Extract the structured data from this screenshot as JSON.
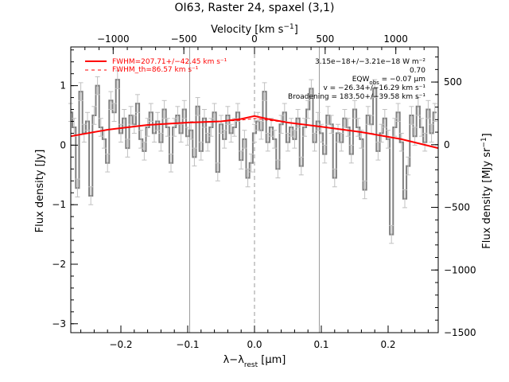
{
  "chart_data": {
    "type": "line",
    "title": "OI63, Raster 24, spaxel (3,1)",
    "xlabel": "λ−λrest [μm]",
    "ylabel": "Flux density [Jy]",
    "top_xlabel": "Velocity [km s⁻¹]",
    "right_ylabel": "Flux density [MJy sr⁻¹]",
    "xlim": [
      -0.275,
      0.275
    ],
    "ylim": [
      -3.15,
      1.65
    ],
    "top_xlim": [
      -1300,
      1300
    ],
    "right_ylim": [
      -1500,
      780
    ],
    "x_ticks": [
      -0.2,
      -0.1,
      0.0,
      0.1,
      0.2
    ],
    "x_tick_labels": [
      "−0.2",
      "−0.1",
      "0.0",
      "0.1",
      "0.2"
    ],
    "y_ticks": [
      -3,
      -2,
      -1,
      0,
      1
    ],
    "y_tick_labels": [
      "−3",
      "−2",
      "−1",
      "0",
      "1"
    ],
    "top_x_ticks": [
      -1000,
      -500,
      0,
      500,
      1000
    ],
    "top_x_tick_labels": [
      "−1000",
      "−500",
      "0",
      "500",
      "1000"
    ],
    "right_y_ticks": [
      -1500,
      -1000,
      -500,
      0,
      500
    ],
    "right_y_tick_labels": [
      "−1500",
      "−1000",
      "−500",
      "0",
      "500"
    ],
    "vertical_lines": [
      {
        "x": -0.097,
        "style": "solid"
      },
      {
        "x": 0.0,
        "style": "dashed"
      },
      {
        "x": 0.097,
        "style": "solid"
      }
    ],
    "legend": {
      "position": "top-left",
      "entries": [
        {
          "label": "FWHM=207.71+/−42.45 km s⁻¹",
          "style": "solid",
          "color": "#ff0000"
        },
        {
          "label": "FWHM_th=86.57 km s⁻¹",
          "style": "dashed",
          "color": "#ff0000"
        }
      ]
    },
    "annotations": [
      "3.15e−18+/−3.21e−18 W m⁻²",
      "0.70",
      "EQWobs = −0.07 μm",
      "v = −26.34+/−16.29 km s⁻¹",
      "Broadening = 183.50+/−39.58 km s⁻¹"
    ],
    "series": [
      {
        "style": "steps-with-errorbars",
        "color": "#808080",
        "x": [
          -0.275,
          -0.27,
          -0.265,
          -0.26,
          -0.255,
          -0.25,
          -0.245,
          -0.24,
          -0.235,
          -0.23,
          -0.225,
          -0.22,
          -0.215,
          -0.21,
          -0.205,
          -0.2,
          -0.195,
          -0.19,
          -0.185,
          -0.18,
          -0.175,
          -0.17,
          -0.165,
          -0.16,
          -0.155,
          -0.15,
          -0.145,
          -0.14,
          -0.135,
          -0.13,
          -0.125,
          -0.12,
          -0.115,
          -0.11,
          -0.105,
          -0.1,
          -0.095,
          -0.09,
          -0.085,
          -0.08,
          -0.075,
          -0.07,
          -0.065,
          -0.06,
          -0.055,
          -0.05,
          -0.045,
          -0.04,
          -0.035,
          -0.03,
          -0.025,
          -0.02,
          -0.015,
          -0.01,
          -0.005,
          0.0,
          0.005,
          0.01,
          0.015,
          0.02,
          0.025,
          0.03,
          0.035,
          0.04,
          0.045,
          0.05,
          0.055,
          0.06,
          0.065,
          0.07,
          0.075,
          0.08,
          0.085,
          0.09,
          0.095,
          0.1,
          0.105,
          0.11,
          0.115,
          0.12,
          0.125,
          0.13,
          0.135,
          0.14,
          0.145,
          0.15,
          0.155,
          0.16,
          0.165,
          0.17,
          0.175,
          0.18,
          0.185,
          0.19,
          0.195,
          0.2,
          0.205,
          0.21,
          0.215,
          0.22,
          0.225,
          0.23,
          0.235,
          0.24,
          0.245,
          0.25,
          0.255,
          0.26,
          0.265,
          0.27
        ],
        "y": [
          0.55,
          0.3,
          -0.72,
          0.9,
          0.2,
          0.4,
          -0.85,
          0.5,
          1.0,
          0.3,
          0.1,
          -0.3,
          0.75,
          0.55,
          1.1,
          0.2,
          0.45,
          -0.05,
          0.5,
          0.35,
          0.7,
          0.1,
          -0.1,
          0.3,
          0.55,
          0.2,
          0.4,
          0.05,
          0.6,
          0.3,
          -0.3,
          0.3,
          0.5,
          0.2,
          0.6,
          0.15,
          0.25,
          -0.2,
          0.65,
          -0.1,
          0.45,
          0.05,
          0.3,
          0.55,
          -0.45,
          0.35,
          0.1,
          0.5,
          0.2,
          0.3,
          0.55,
          -0.25,
          0.1,
          -0.55,
          -0.3,
          0.2,
          0.4,
          0.25,
          0.9,
          0.05,
          0.3,
          0.1,
          -0.4,
          0.35,
          0.55,
          0.05,
          0.3,
          0.1,
          0.45,
          -0.35,
          0.3,
          0.6,
          0.95,
          0.05,
          0.4,
          0.2,
          -0.15,
          0.5,
          0.35,
          -0.55,
          0.2,
          0.05,
          0.45,
          0.3,
          -0.15,
          0.6,
          0.3,
          0.1,
          -0.75,
          0.5,
          0.35,
          0.95,
          -0.1,
          0.2,
          0.45,
          0.1,
          -1.5,
          0.3,
          0.55,
          0.05,
          -0.9,
          -0.35,
          0.5,
          0.15,
          0.65,
          0.3,
          0.05,
          0.6,
          0.2,
          0.55
        ]
      },
      {
        "name": "FWHM=207.71+/−42.45 km s⁻¹",
        "style": "solid",
        "color": "#ff0000",
        "x": [
          -0.275,
          -0.22,
          -0.16,
          -0.1,
          -0.05,
          -0.02,
          0.0,
          0.02,
          0.05,
          0.1,
          0.16,
          0.22,
          0.275
        ],
        "y": [
          0.15,
          0.26,
          0.34,
          0.38,
          0.4,
          0.44,
          0.49,
          0.44,
          0.38,
          0.31,
          0.22,
          0.1,
          -0.05
        ]
      },
      {
        "name": "FWHM_th=86.57 km s⁻¹",
        "style": "dashed",
        "color": "#ff0000",
        "x": [
          -0.275,
          -0.22,
          -0.16,
          -0.1,
          -0.05,
          -0.02,
          0.0,
          0.02,
          0.05,
          0.1,
          0.16,
          0.22,
          0.275
        ],
        "y": [
          0.15,
          0.26,
          0.34,
          0.38,
          0.4,
          0.42,
          0.45,
          0.42,
          0.38,
          0.31,
          0.22,
          0.1,
          -0.05
        ]
      }
    ]
  }
}
